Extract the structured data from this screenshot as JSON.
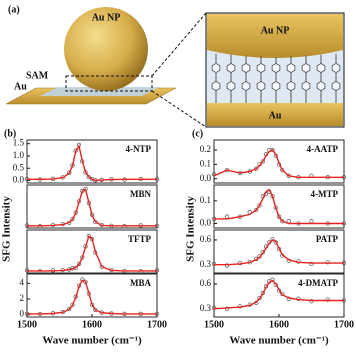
{
  "panel_labels": [
    "(a)",
    "(b)",
    "(c)"
  ],
  "illustration": {
    "labels": [
      "Au NP",
      "Au",
      "SAM",
      "Au NP",
      "Au"
    ]
  },
  "axis_labels": {
    "ylabel": "SFG Intensity",
    "xlabel": "Wave number (cm⁻¹)"
  },
  "chart_data": [
    {
      "type": "line",
      "annotation": "4-NTP",
      "xlim": [
        1500,
        1700
      ],
      "ylim": [
        -0.1,
        1.65
      ],
      "yticks": [
        {
          "value": 0,
          "label": "0.0"
        },
        0.5,
        {
          "value": 1,
          "label": "1.0"
        },
        1.5
      ],
      "x": [
        1500,
        1520,
        1540,
        1555,
        1565,
        1570,
        1575,
        1580,
        1585,
        1590,
        1595,
        1600,
        1605,
        1615,
        1630,
        1650,
        1675,
        1700
      ],
      "series": [
        {
          "color": "#555555",
          "values": [
            0.06,
            0.04,
            0.07,
            0.13,
            0.32,
            0.62,
            1.22,
            1.45,
            0.78,
            0.33,
            0.14,
            0.06,
            0.01,
            0.03,
            0.05,
            0.04,
            0.06,
            0.05
          ]
        },
        {
          "color": "#e8231f",
          "values": [
            0.05,
            0.05,
            0.06,
            0.12,
            0.3,
            0.6,
            1.2,
            1.4,
            0.8,
            0.35,
            0.15,
            0.05,
            0.0,
            0.02,
            0.04,
            0.05,
            0.05,
            0.05
          ]
        }
      ]
    },
    {
      "type": "line",
      "annotation": "MBN",
      "xlim": [
        1500,
        1700
      ],
      "ylim": [
        0,
        1
      ],
      "yticks": [],
      "x": [
        1500,
        1520,
        1540,
        1555,
        1565,
        1570,
        1575,
        1580,
        1585,
        1590,
        1595,
        1600,
        1605,
        1615,
        1630,
        1650,
        1675,
        1700
      ],
      "series": [
        {
          "color": "#555555",
          "values": [
            0.06,
            0.04,
            0.07,
            0.09,
            0.12,
            0.21,
            0.36,
            0.62,
            0.86,
            0.91,
            0.58,
            0.31,
            0.14,
            0.07,
            0.05,
            0.04,
            0.06,
            0.05
          ]
        },
        {
          "color": "#e8231f",
          "values": [
            0.05,
            0.05,
            0.06,
            0.08,
            0.13,
            0.2,
            0.35,
            0.6,
            0.85,
            0.9,
            0.6,
            0.3,
            0.15,
            0.06,
            0.05,
            0.05,
            0.05,
            0.05
          ]
        }
      ]
    },
    {
      "type": "line",
      "annotation": "TFTP",
      "xlim": [
        1500,
        1700
      ],
      "ylim": [
        0,
        1
      ],
      "yticks": [],
      "x": [
        1500,
        1520,
        1540,
        1555,
        1565,
        1570,
        1575,
        1580,
        1585,
        1590,
        1595,
        1600,
        1605,
        1615,
        1630,
        1650,
        1675,
        1700
      ],
      "series": [
        {
          "color": "#555555",
          "values": [
            0.06,
            0.04,
            0.06,
            0.07,
            0.08,
            0.11,
            0.12,
            0.21,
            0.36,
            0.62,
            0.86,
            0.79,
            0.48,
            0.14,
            0.07,
            0.05,
            0.04,
            0.06
          ]
        },
        {
          "color": "#e8231f",
          "values": [
            0.05,
            0.05,
            0.05,
            0.06,
            0.08,
            0.1,
            0.13,
            0.2,
            0.35,
            0.6,
            0.85,
            0.8,
            0.5,
            0.15,
            0.06,
            0.05,
            0.05,
            0.05
          ]
        }
      ]
    },
    {
      "type": "line",
      "annotation": "MBA",
      "xlim": [
        1500,
        1700
      ],
      "ylim": [
        -0.3,
        5.2
      ],
      "yticks": [
        0,
        2,
        4
      ],
      "xticks": [
        1500,
        1600,
        1700
      ],
      "x": [
        1500,
        1520,
        1540,
        1555,
        1565,
        1570,
        1575,
        1580,
        1585,
        1590,
        1595,
        1600,
        1605,
        1615,
        1630,
        1650,
        1675,
        1700
      ],
      "series": [
        {
          "color": "#555555",
          "values": [
            0.12,
            0.08,
            0.17,
            0.32,
            0.72,
            1.25,
            2.3,
            3.7,
            4.5,
            4.2,
            2.7,
            1.25,
            0.62,
            0.27,
            0.14,
            0.11,
            0.09,
            0.1
          ]
        },
        {
          "color": "#e8231f",
          "values": [
            0.1,
            0.1,
            0.15,
            0.3,
            0.7,
            1.2,
            2.2,
            3.6,
            4.4,
            4.2,
            2.8,
            1.3,
            0.6,
            0.25,
            0.15,
            0.1,
            0.1,
            0.1
          ]
        }
      ]
    },
    {
      "type": "line",
      "annotation": "4-AATP",
      "xlim": [
        1500,
        1700
      ],
      "ylim": [
        -0.03,
        0.27
      ],
      "yticks": [
        {
          "value": 0,
          "label": "0.0"
        },
        0.1,
        0.2
      ],
      "x": [
        1500,
        1520,
        1540,
        1555,
        1565,
        1570,
        1575,
        1580,
        1585,
        1590,
        1595,
        1600,
        1605,
        1615,
        1630,
        1650,
        1675,
        1700
      ],
      "series": [
        {
          "color": "#555555",
          "values": [
            0.03,
            0.06,
            0.04,
            0.05,
            0.07,
            0.1,
            0.12,
            0.17,
            0.2,
            0.2,
            0.16,
            0.1,
            0.06,
            0.02,
            0.01,
            0.02,
            0.01,
            0.01
          ]
        },
        {
          "color": "#e8231f",
          "values": [
            0.02,
            0.06,
            0.04,
            0.05,
            0.07,
            0.09,
            0.12,
            0.16,
            0.19,
            0.2,
            0.17,
            0.11,
            0.06,
            0.02,
            0.01,
            0.01,
            0.01,
            0.01
          ]
        }
      ]
    },
    {
      "type": "line",
      "annotation": "4-MTP",
      "xlim": [
        1500,
        1700
      ],
      "ylim": [
        -0.02,
        0.17
      ],
      "yticks": [
        {
          "value": 0,
          "label": "0.0"
        },
        0.1
      ],
      "x": [
        1500,
        1520,
        1540,
        1555,
        1565,
        1570,
        1575,
        1580,
        1585,
        1590,
        1595,
        1600,
        1605,
        1615,
        1630,
        1650,
        1675,
        1700
      ],
      "series": [
        {
          "color": "#555555",
          "values": [
            0.02,
            0.03,
            0.03,
            0.05,
            0.06,
            0.08,
            0.12,
            0.13,
            0.14,
            0.12,
            0.07,
            0.03,
            0.01,
            0.01,
            0.0,
            0.01,
            0.0,
            0.0
          ]
        },
        {
          "color": "#e8231f",
          "values": [
            0.02,
            0.02,
            0.03,
            0.04,
            0.06,
            0.08,
            0.11,
            0.14,
            0.15,
            0.12,
            0.07,
            0.03,
            0.01,
            0.0,
            0.0,
            0.0,
            0.0,
            0.0
          ]
        }
      ]
    },
    {
      "type": "line",
      "annotation": "PATP",
      "xlim": [
        1500,
        1700
      ],
      "ylim": [
        0.2,
        0.72
      ],
      "yticks": [
        0.3,
        0.6
      ],
      "x": [
        1500,
        1520,
        1540,
        1555,
        1565,
        1570,
        1575,
        1580,
        1585,
        1590,
        1595,
        1600,
        1605,
        1615,
        1630,
        1650,
        1675,
        1700
      ],
      "series": [
        {
          "color": "#555555",
          "values": [
            0.31,
            0.29,
            0.32,
            0.33,
            0.37,
            0.4,
            0.45,
            0.52,
            0.57,
            0.61,
            0.57,
            0.49,
            0.41,
            0.35,
            0.34,
            0.31,
            0.33,
            0.32
          ]
        },
        {
          "color": "#e8231f",
          "values": [
            0.3,
            0.3,
            0.31,
            0.33,
            0.36,
            0.39,
            0.44,
            0.5,
            0.56,
            0.6,
            0.58,
            0.5,
            0.42,
            0.36,
            0.33,
            0.32,
            0.32,
            0.32
          ]
        }
      ]
    },
    {
      "type": "line",
      "annotation": "4-DMATP",
      "xlim": [
        1500,
        1700
      ],
      "ylim": [
        0.2,
        0.72
      ],
      "yticks": [
        0.3,
        0.6
      ],
      "xticks": [
        1500,
        1600,
        1700
      ],
      "x": [
        1500,
        1520,
        1540,
        1555,
        1565,
        1570,
        1575,
        1580,
        1585,
        1590,
        1595,
        1600,
        1605,
        1615,
        1630,
        1650,
        1675,
        1700
      ],
      "series": [
        {
          "color": "#555555",
          "values": [
            0.31,
            0.3,
            0.33,
            0.35,
            0.37,
            0.43,
            0.49,
            0.57,
            0.63,
            0.65,
            0.59,
            0.52,
            0.48,
            0.42,
            0.42,
            0.39,
            0.41,
            0.4
          ]
        },
        {
          "color": "#e8231f",
          "values": [
            0.3,
            0.31,
            0.32,
            0.34,
            0.38,
            0.42,
            0.48,
            0.56,
            0.62,
            0.64,
            0.6,
            0.53,
            0.47,
            0.43,
            0.41,
            0.4,
            0.4,
            0.4
          ]
        }
      ]
    }
  ]
}
